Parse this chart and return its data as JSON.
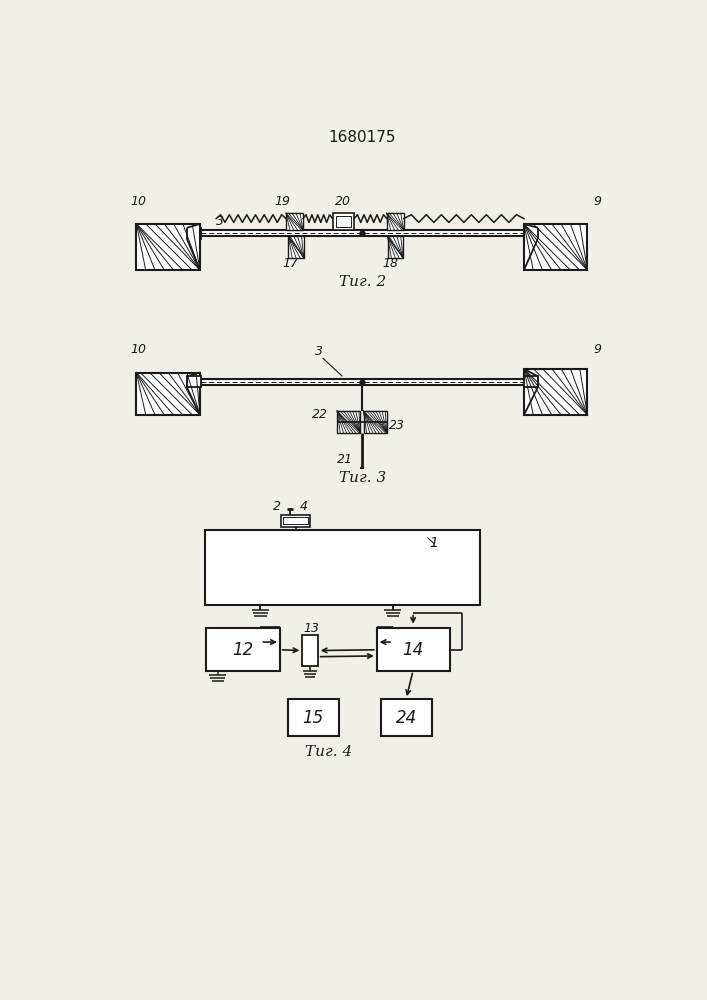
{
  "title": "1680175",
  "title_fontsize": 11,
  "fig2_label": "Τиг. 2",
  "fig3_label": "Τиг. 3",
  "fig4_label": "Τиг. 4",
  "bg_color": "#f2efe9",
  "line_color": "#1a1a1a"
}
